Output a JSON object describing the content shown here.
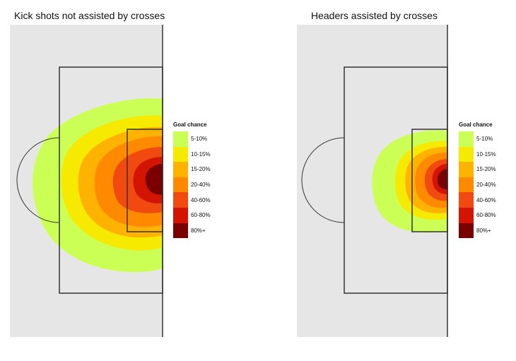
{
  "chart_data": [
    {
      "type": "heatmap",
      "title": "Kick shots not assisted by crosses",
      "legend_title": "Goal chance",
      "legend_placement": "right",
      "bands": [
        {
          "label": "5-10%",
          "color": "#ccff55"
        },
        {
          "label": "10-15%",
          "color": "#f5ea00"
        },
        {
          "label": "15-20%",
          "color": "#ffb300"
        },
        {
          "label": "20-40%",
          "color": "#ff8a00"
        },
        {
          "label": "40-60%",
          "color": "#f04a10"
        },
        {
          "label": "60-80%",
          "color": "#d21400"
        },
        {
          "label": "80%+",
          "color": "#7a0000"
        }
      ],
      "pitch_color": "#e6e6e6"
    },
    {
      "type": "heatmap",
      "title": "Headers assisted by crosses",
      "legend_title": "Goal chance",
      "legend_placement": "right",
      "bands": [
        {
          "label": "5-10%",
          "color": "#ccff55"
        },
        {
          "label": "10-15%",
          "color": "#f5ea00"
        },
        {
          "label": "15-20%",
          "color": "#ffb300"
        },
        {
          "label": "20-40%",
          "color": "#ff8a00"
        },
        {
          "label": "40-60%",
          "color": "#f04a10"
        },
        {
          "label": "60-80%",
          "color": "#d21400"
        },
        {
          "label": "80%+",
          "color": "#7a0000"
        }
      ],
      "pitch_color": "#e6e6e6"
    }
  ]
}
